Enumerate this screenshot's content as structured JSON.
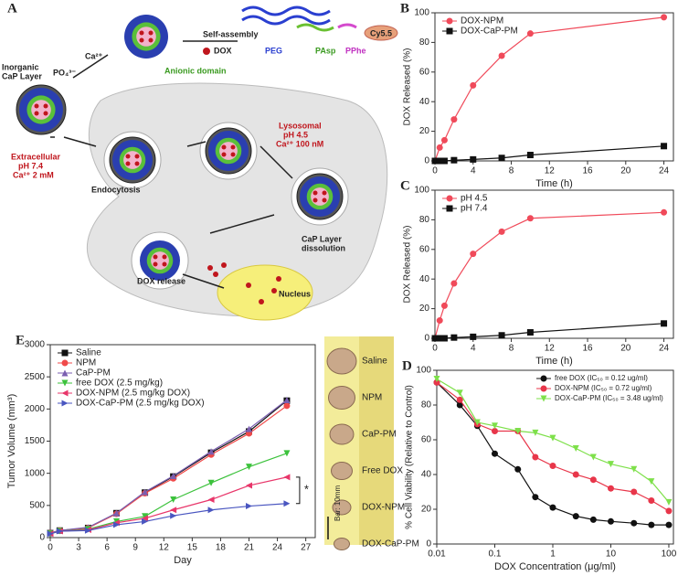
{
  "chart_data": [
    {
      "type": "line",
      "panel": "B",
      "xlabel": "Time (h)",
      "ylabel": "DOX Released (%)",
      "x": [
        0,
        0.5,
        1,
        2,
        4,
        7,
        10,
        24
      ],
      "series": [
        {
          "name": "DOX-NPM",
          "color": "#f04a5a",
          "marker": "circle",
          "values": [
            0,
            9,
            14,
            28,
            51,
            71,
            86,
            97
          ]
        },
        {
          "name": "DOX-CaP-PM",
          "color": "#111111",
          "marker": "square",
          "values": [
            0,
            0,
            0,
            0.5,
            1,
            2,
            4,
            10
          ]
        }
      ],
      "xlim": [
        0,
        25
      ],
      "ylim": [
        0,
        100
      ],
      "xticks": [
        0,
        4,
        8,
        12,
        16,
        20,
        24
      ],
      "yticks": [
        0,
        20,
        40,
        60,
        80,
        100
      ],
      "legend": "upper left"
    },
    {
      "type": "line",
      "panel": "C",
      "xlabel": "Time (h)",
      "ylabel": "DOX Released (%)",
      "x": [
        0,
        0.5,
        1,
        2,
        4,
        7,
        10,
        24
      ],
      "series": [
        {
          "name": "pH 4.5",
          "color": "#f04a5a",
          "marker": "circle",
          "values": [
            0,
            12,
            22,
            37,
            57,
            72,
            81,
            85
          ]
        },
        {
          "name": "pH 7.4",
          "color": "#111111",
          "marker": "square",
          "values": [
            0,
            0,
            0,
            0.5,
            1,
            2,
            4,
            10
          ]
        }
      ],
      "xlim": [
        0,
        25
      ],
      "ylim": [
        0,
        100
      ],
      "xticks": [
        0,
        4,
        8,
        12,
        16,
        20,
        24
      ],
      "yticks": [
        0,
        20,
        40,
        60,
        80,
        100
      ],
      "legend": "upper left"
    },
    {
      "type": "line",
      "panel": "D",
      "xlabel": "DOX Concentration (μg/ml)",
      "ylabel": "% Cell Viability (Relative to Control)",
      "xscale": "log",
      "x": [
        0.01,
        0.025,
        0.05,
        0.1,
        0.25,
        0.5,
        1,
        2.5,
        5,
        10,
        25,
        50,
        100
      ],
      "series": [
        {
          "name": "free DOX (IC₅₀ = 0.12 ug/ml)",
          "color": "#111111",
          "marker": "circle",
          "values": [
            93,
            80,
            68,
            52,
            43,
            27,
            21,
            16,
            14,
            13,
            12,
            11,
            11
          ]
        },
        {
          "name": "DOX-NPM (IC₅₀ = 0.72 ug/ml)",
          "color": "#e8364a",
          "marker": "circle",
          "values": [
            93,
            83,
            69,
            65,
            65,
            50,
            45,
            40,
            37,
            32,
            30,
            25,
            19
          ]
        },
        {
          "name": "DOX-CaP-PM (IC₅₀ = 3.48 ug/ml)",
          "color": "#7ee04a",
          "marker": "down",
          "values": [
            95,
            87,
            70,
            68,
            65,
            64,
            61,
            55,
            50,
            46,
            43,
            36,
            24
          ]
        }
      ],
      "xlim": [
        0.01,
        120
      ],
      "ylim": [
        0,
        100
      ],
      "xticks": [
        0.01,
        0.1,
        1,
        10,
        100
      ],
      "yticks": [
        0,
        20,
        40,
        60,
        80,
        100
      ],
      "legend": "upper right"
    },
    {
      "type": "line",
      "panel": "E",
      "xlabel": "Day",
      "ylabel": "Tumor Volume (mm³)",
      "annotation": "*",
      "x": [
        0,
        1,
        4,
        7,
        10,
        13,
        17,
        21,
        25
      ],
      "series": [
        {
          "name": "Saline",
          "color": "#111111",
          "marker": "square",
          "values": [
            70,
            110,
            150,
            380,
            700,
            950,
            1320,
            1650,
            2130
          ]
        },
        {
          "name": "NPM",
          "color": "#f04a4a",
          "marker": "circle",
          "values": [
            70,
            110,
            150,
            370,
            690,
            920,
            1290,
            1620,
            2050
          ]
        },
        {
          "name": "CaP-PM",
          "color": "#7a5fb0",
          "marker": "up",
          "values": [
            70,
            110,
            160,
            380,
            710,
            960,
            1340,
            1690,
            2140
          ]
        },
        {
          "name": "free DOX (2.5 mg/kg)",
          "color": "#3cc23c",
          "marker": "down",
          "values": [
            60,
            100,
            130,
            250,
            330,
            590,
            850,
            1100,
            1310
          ]
        },
        {
          "name": "DOX-NPM (2.5 mg/kg DOX)",
          "color": "#e8366a",
          "marker": "left",
          "values": [
            60,
            100,
            120,
            230,
            300,
            430,
            590,
            810,
            940
          ]
        },
        {
          "name": "DOX-CaP-PM (2.5 mg/kg DOX)",
          "color": "#4a56c0",
          "marker": "right",
          "values": [
            60,
            100,
            110,
            200,
            250,
            340,
            430,
            490,
            530
          ]
        }
      ],
      "xlim": [
        0,
        28
      ],
      "ylim": [
        0,
        3000
      ],
      "xticks": [
        0,
        3,
        6,
        9,
        12,
        15,
        18,
        21,
        24,
        27
      ],
      "yticks": [
        0,
        500,
        1000,
        1500,
        2000,
        2500,
        3000
      ],
      "legend": "upper left"
    }
  ],
  "diagram": {
    "panel": "A",
    "self_assembly": "Self-assembly",
    "dox": "DOX",
    "peg": "PEG",
    "pasp": "PAsp",
    "pphe": "PPhe",
    "cy55": "Cy5.5",
    "ca": "Ca²⁺",
    "po4": "PO₄³⁻",
    "inorganic": [
      "Inorganic",
      "CaP Layer"
    ],
    "anionic": "Anionic domain",
    "extracellular": [
      "Extracellular",
      "pH 7.4",
      "Ca²⁺ 2 mM"
    ],
    "endocytosis": "Endocytosis",
    "lysosomal": [
      "Lysosomal",
      "pH 4.5",
      "Ca²⁺ 100 nM"
    ],
    "dissolution": [
      "CaP Layer",
      "dissolution"
    ],
    "release": "DOX release",
    "nucleus": "Nucleus"
  },
  "photos": {
    "labels": [
      "Saline",
      "NPM",
      "CaP-PM",
      "Free DOX",
      "DOX-NPM",
      "DOX-CaP-PM"
    ],
    "scale_bar": "Bar: 10mm"
  }
}
